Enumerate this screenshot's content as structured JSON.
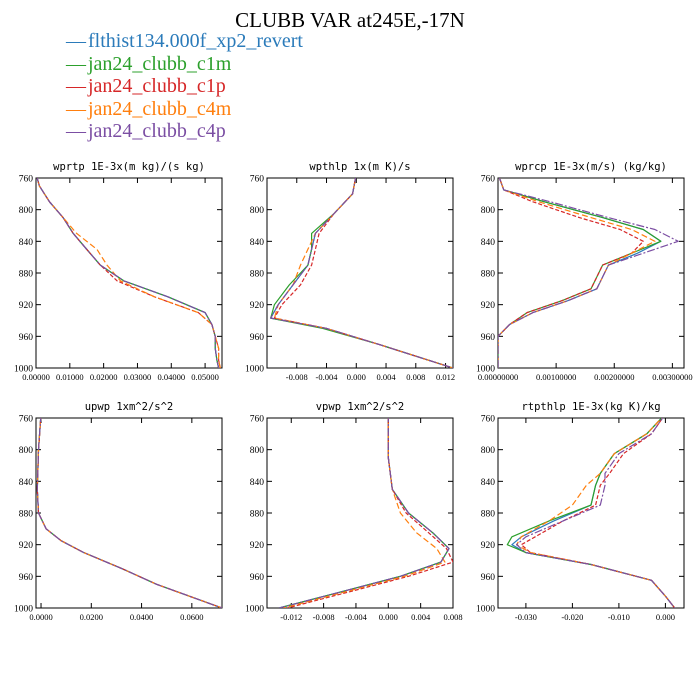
{
  "title": "CLUBB VAR at245E,-17N",
  "colors": {
    "axis": "#000000",
    "text": "#000000"
  },
  "legend": [
    {
      "name": "flthist134.000f_xp2_revert",
      "color": "#2b7bba"
    },
    {
      "name": "jan24_clubb_c1m",
      "color": "#2ca02c"
    },
    {
      "name": "jan24_clubb_c1p",
      "color": "#d62728"
    },
    {
      "name": "jan24_clubb_c4m",
      "color": "#ff7f0e"
    },
    {
      "name": "jan24_clubb_c4p",
      "color": "#7b4ea3"
    }
  ],
  "chart_data": [
    {
      "type": "line",
      "title": "wprtp  1E-3x(m kg)/(s kg)",
      "xlim": [
        0.0,
        0.055
      ],
      "ylim": [
        760,
        1000
      ],
      "xticks": [
        0.0,
        0.01,
        0.02,
        0.03,
        0.04,
        0.05
      ],
      "xtick_labels": [
        "0.00000",
        "0.01000",
        "0.02000",
        "0.03000",
        "0.04000",
        "0.05000"
      ],
      "yticks": [
        760,
        800,
        840,
        880,
        920,
        960,
        1000
      ],
      "y": [
        755,
        770,
        790,
        810,
        830,
        850,
        870,
        890,
        910,
        930,
        945,
        960,
        975,
        990,
        1000
      ],
      "series": [
        {
          "name": "flthist134.000f_xp2_revert",
          "values": [
            0.0,
            0.001,
            0.004,
            0.008,
            0.011,
            0.015,
            0.019,
            0.026,
            0.039,
            0.05,
            0.052,
            0.053,
            0.053,
            0.0535,
            0.054
          ]
        },
        {
          "name": "jan24_clubb_c1m",
          "values": [
            0.0,
            0.001,
            0.004,
            0.008,
            0.011,
            0.015,
            0.019,
            0.026,
            0.039,
            0.05,
            0.052,
            0.053,
            0.053,
            0.0535,
            0.054
          ]
        },
        {
          "name": "jan24_clubb_c1p",
          "values": [
            0.0,
            0.001,
            0.004,
            0.008,
            0.011,
            0.015,
            0.019,
            0.024,
            0.035,
            0.048,
            0.052,
            0.053,
            0.054,
            0.054,
            0.0545
          ]
        },
        {
          "name": "jan24_clubb_c4m",
          "values": [
            0.0,
            0.001,
            0.004,
            0.008,
            0.012,
            0.018,
            0.021,
            0.025,
            0.035,
            0.048,
            0.052,
            0.053,
            0.054,
            0.054,
            0.0545
          ]
        },
        {
          "name": "jan24_clubb_c4p",
          "values": [
            0.0,
            0.001,
            0.004,
            0.008,
            0.011,
            0.015,
            0.019,
            0.026,
            0.039,
            0.05,
            0.052,
            0.053,
            0.053,
            0.0535,
            0.054
          ]
        }
      ]
    },
    {
      "type": "line",
      "title": "wpthlp  1x(m K)/s",
      "xlim": [
        -0.012,
        0.013
      ],
      "ylim": [
        760,
        1000
      ],
      "xticks": [
        -0.008,
        -0.004,
        0.0,
        0.004,
        0.008,
        0.012
      ],
      "xtick_labels": [
        "-0.008",
        "-0.004",
        "0.000",
        "0.004",
        "0.008",
        "0.012"
      ],
      "yticks": [
        760,
        800,
        840,
        880,
        920,
        960,
        1000
      ],
      "y": [
        755,
        780,
        805,
        830,
        850,
        870,
        895,
        920,
        937,
        950,
        970,
        1000
      ],
      "series": [
        {
          "name": "flthist134.000f_xp2_revert",
          "values": [
            0.0,
            -0.0005,
            -0.003,
            -0.0055,
            -0.006,
            -0.0065,
            -0.0085,
            -0.0105,
            -0.0115,
            -0.004,
            0.003,
            0.013
          ]
        },
        {
          "name": "jan24_clubb_c1m",
          "values": [
            0.0,
            -0.0005,
            -0.003,
            -0.006,
            -0.006,
            -0.0065,
            -0.009,
            -0.011,
            -0.0115,
            -0.0045,
            0.003,
            0.013
          ]
        },
        {
          "name": "jan24_clubb_c1p",
          "values": [
            0.0,
            -0.0005,
            -0.003,
            -0.005,
            -0.0055,
            -0.006,
            -0.0075,
            -0.01,
            -0.011,
            -0.004,
            0.003,
            0.013
          ]
        },
        {
          "name": "jan24_clubb_c4m",
          "values": [
            0.0,
            -0.0005,
            -0.003,
            -0.0055,
            -0.0065,
            -0.0075,
            -0.0085,
            -0.0105,
            -0.011,
            -0.004,
            0.003,
            0.013
          ]
        },
        {
          "name": "jan24_clubb_c4p",
          "values": [
            0.0,
            -0.0005,
            -0.003,
            -0.0055,
            -0.006,
            -0.0065,
            -0.0085,
            -0.0105,
            -0.0115,
            -0.004,
            0.003,
            0.013
          ]
        }
      ]
    },
    {
      "type": "line",
      "title": "wprcp  1E-3x(m/s) (kg/kg)",
      "xlim": [
        0.0,
        0.0032
      ],
      "ylim": [
        760,
        1000
      ],
      "xticks": [
        0.0,
        0.001,
        0.002,
        0.003
      ],
      "xtick_labels": [
        "0.00000000",
        "0.00100000",
        "0.00200000",
        "0.00300000"
      ],
      "yticks": [
        760,
        800,
        840,
        880,
        920,
        960,
        1000
      ],
      "y": [
        755,
        775,
        790,
        810,
        825,
        840,
        855,
        870,
        885,
        900,
        915,
        930,
        945,
        960,
        980,
        1000
      ],
      "series": [
        {
          "name": "flthist134.000f_xp2_revert",
          "values": [
            0.0,
            0.0001,
            0.0008,
            0.0018,
            0.0025,
            0.0028,
            0.0024,
            0.0019,
            0.0018,
            0.0017,
            0.0012,
            0.0006,
            0.0002,
            0.0,
            0.0,
            0.0
          ]
        },
        {
          "name": "jan24_clubb_c1m",
          "values": [
            0.0,
            0.0001,
            0.0008,
            0.0018,
            0.0025,
            0.0028,
            0.0023,
            0.0018,
            0.0017,
            0.0016,
            0.0011,
            0.0005,
            0.0002,
            0.0,
            0.0,
            0.0
          ]
        },
        {
          "name": "jan24_clubb_c1p",
          "values": [
            0.0,
            0.0001,
            0.0006,
            0.0014,
            0.0021,
            0.0025,
            0.0023,
            0.0018,
            0.0017,
            0.0016,
            0.0011,
            0.0005,
            0.0002,
            0.0,
            0.0,
            0.0
          ]
        },
        {
          "name": "jan24_clubb_c4m",
          "values": [
            0.0,
            0.0001,
            0.0007,
            0.0016,
            0.0023,
            0.0027,
            0.0023,
            0.0019,
            0.0018,
            0.0017,
            0.0012,
            0.0006,
            0.0002,
            0.0,
            0.0,
            0.0
          ]
        },
        {
          "name": "jan24_clubb_c4p",
          "values": [
            0.0,
            0.0001,
            0.0009,
            0.0019,
            0.0027,
            0.0031,
            0.0025,
            0.0019,
            0.0018,
            0.0017,
            0.0012,
            0.0006,
            0.0002,
            0.0,
            0.0,
            0.0
          ]
        }
      ]
    },
    {
      "type": "line",
      "title": "upwp  1xm^2/s^2",
      "xlim": [
        -0.002,
        0.072
      ],
      "ylim": [
        760,
        1000
      ],
      "xticks": [
        0.0,
        0.02,
        0.04,
        0.06
      ],
      "xtick_labels": [
        "0.0000",
        "0.0200",
        "0.0400",
        "0.0600"
      ],
      "yticks": [
        760,
        800,
        840,
        880,
        920,
        960,
        1000
      ],
      "y": [
        755,
        800,
        850,
        880,
        900,
        915,
        930,
        950,
        970,
        1000
      ],
      "series": [
        {
          "name": "flthist134.000f_xp2_revert",
          "values": [
            0.0,
            -0.001,
            -0.0015,
            -0.001,
            0.002,
            0.008,
            0.017,
            0.032,
            0.046,
            0.072
          ]
        },
        {
          "name": "jan24_clubb_c1m",
          "values": [
            0.0,
            -0.001,
            -0.0015,
            -0.001,
            0.002,
            0.008,
            0.017,
            0.032,
            0.046,
            0.072
          ]
        },
        {
          "name": "jan24_clubb_c1p",
          "values": [
            0.0,
            -0.001,
            -0.0015,
            -0.001,
            0.002,
            0.008,
            0.017,
            0.032,
            0.046,
            0.072
          ]
        },
        {
          "name": "jan24_clubb_c4m",
          "values": [
            0.0,
            -0.001,
            -0.0015,
            -0.001,
            0.002,
            0.008,
            0.017,
            0.032,
            0.046,
            0.072
          ]
        },
        {
          "name": "jan24_clubb_c4p",
          "values": [
            0.0,
            -0.001,
            -0.0015,
            -0.001,
            0.002,
            0.008,
            0.017,
            0.032,
            0.046,
            0.072
          ]
        }
      ]
    },
    {
      "type": "line",
      "title": "vpwp  1xm^2/s^2",
      "xlim": [
        -0.015,
        0.008
      ],
      "ylim": [
        760,
        1000
      ],
      "xticks": [
        -0.012,
        -0.008,
        -0.004,
        0.0,
        0.004,
        0.008
      ],
      "xtick_labels": [
        "-0.012",
        "-0.008",
        "-0.004",
        "0.000",
        "0.004",
        "0.008"
      ],
      "yticks": [
        760,
        800,
        840,
        880,
        920,
        960,
        1000
      ],
      "y": [
        755,
        810,
        850,
        880,
        905,
        925,
        942,
        960,
        980,
        1000
      ],
      "series": [
        {
          "name": "flthist134.000f_xp2_revert",
          "values": [
            0.0,
            0.0,
            0.0005,
            0.0025,
            0.0055,
            0.0075,
            0.0065,
            0.0015,
            -0.006,
            -0.0135
          ]
        },
        {
          "name": "jan24_clubb_c1m",
          "values": [
            0.0,
            0.0,
            0.0005,
            0.0025,
            0.0055,
            0.0075,
            0.0065,
            0.0015,
            -0.006,
            -0.0135
          ]
        },
        {
          "name": "jan24_clubb_c1p",
          "values": [
            0.0,
            0.0,
            0.0005,
            0.0022,
            0.005,
            0.0072,
            0.008,
            0.0025,
            -0.005,
            -0.0125
          ]
        },
        {
          "name": "jan24_clubb_c4m",
          "values": [
            0.0,
            0.0,
            0.0005,
            0.0015,
            0.0035,
            0.006,
            0.007,
            0.002,
            -0.0055,
            -0.013
          ]
        },
        {
          "name": "jan24_clubb_c4p",
          "values": [
            0.0,
            0.0,
            0.0005,
            0.0025,
            0.0055,
            0.0075,
            0.0065,
            0.0015,
            -0.006,
            -0.0135
          ]
        }
      ]
    },
    {
      "type": "line",
      "title": "rtpthlp  1E-3x(kg K)/kg",
      "xlim": [
        -0.036,
        0.004
      ],
      "ylim": [
        760,
        1000
      ],
      "xticks": [
        -0.03,
        -0.02,
        -0.01,
        0.0
      ],
      "xtick_labels": [
        "-0.030",
        "-0.020",
        "-0.010",
        "0.000"
      ],
      "yticks": [
        760,
        800,
        840,
        880,
        920,
        960,
        1000
      ],
      "y": [
        755,
        780,
        805,
        830,
        845,
        870,
        890,
        910,
        920,
        930,
        945,
        965,
        985,
        1000
      ],
      "series": [
        {
          "name": "flthist134.000f_xp2_revert",
          "values": [
            0.0,
            -0.004,
            -0.011,
            -0.014,
            -0.015,
            -0.016,
            -0.024,
            -0.031,
            -0.033,
            -0.03,
            -0.016,
            -0.003,
            0.0,
            0.002
          ]
        },
        {
          "name": "jan24_clubb_c1m",
          "values": [
            0.0,
            -0.004,
            -0.011,
            -0.014,
            -0.015,
            -0.016,
            -0.025,
            -0.033,
            -0.034,
            -0.03,
            -0.016,
            -0.003,
            0.0,
            0.002
          ]
        },
        {
          "name": "jan24_clubb_c1p",
          "values": [
            0.0,
            -0.003,
            -0.009,
            -0.012,
            -0.014,
            -0.015,
            -0.022,
            -0.028,
            -0.031,
            -0.029,
            -0.016,
            -0.003,
            0.0,
            0.002
          ]
        },
        {
          "name": "jan24_clubb_c4m",
          "values": [
            0.0,
            -0.004,
            -0.011,
            -0.014,
            -0.017,
            -0.02,
            -0.025,
            -0.031,
            -0.032,
            -0.029,
            -0.016,
            -0.003,
            0.0,
            0.002
          ]
        },
        {
          "name": "jan24_clubb_c4p",
          "values": [
            0.0,
            -0.003,
            -0.01,
            -0.013,
            -0.013,
            -0.014,
            -0.022,
            -0.03,
            -0.032,
            -0.03,
            -0.016,
            -0.003,
            0.0,
            0.002
          ]
        }
      ]
    }
  ]
}
